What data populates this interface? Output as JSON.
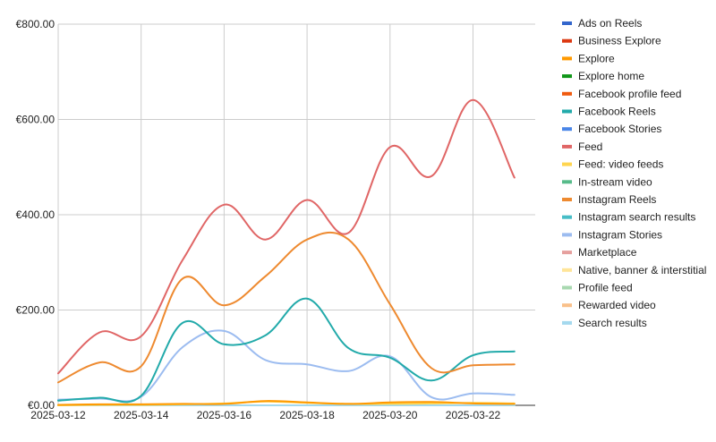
{
  "chart_data": {
    "type": "line",
    "title": "",
    "xlabel": "",
    "ylabel": "",
    "x": [
      "2025-03-12",
      "2025-03-13",
      "2025-03-14",
      "2025-03-15",
      "2025-03-16",
      "2025-03-17",
      "2025-03-18",
      "2025-03-19",
      "2025-03-20",
      "2025-03-21",
      "2025-03-22",
      "2025-03-23"
    ],
    "x_tick_labels": [
      "2025-03-12",
      "2025-03-14",
      "2025-03-16",
      "2025-03-18",
      "2025-03-20",
      "2025-03-22"
    ],
    "ylim": [
      0,
      800
    ],
    "y_ticks": [
      0,
      200,
      400,
      600,
      800
    ],
    "y_tick_labels": [
      "€0.00",
      "€200.00",
      "€400.00",
      "€600.00",
      "€800.00"
    ],
    "grid": true,
    "legend_position": "right",
    "series": [
      {
        "name": "Ads on Reels",
        "color": "#3366cc",
        "values": [
          0,
          0,
          0,
          0,
          0,
          0,
          0,
          0,
          0,
          0,
          0,
          0
        ]
      },
      {
        "name": "Business Explore",
        "color": "#dc3912",
        "values": [
          0,
          0,
          0,
          0,
          0,
          0,
          0,
          0,
          0,
          0,
          0,
          0
        ]
      },
      {
        "name": "Explore",
        "color": "#ff9900",
        "values": [
          1,
          2,
          2,
          3,
          3,
          9,
          6,
          3,
          6,
          7,
          4,
          3
        ]
      },
      {
        "name": "Explore home",
        "color": "#109618",
        "values": [
          0,
          0,
          0,
          0,
          0,
          0,
          0,
          0,
          0,
          0,
          0,
          0
        ]
      },
      {
        "name": "Facebook profile feed",
        "color": "#f05a0e",
        "values": [
          0,
          0,
          0,
          0,
          0,
          0,
          0,
          0,
          0,
          0,
          0,
          0
        ]
      },
      {
        "name": "Facebook Reels",
        "color": "#22aaaa",
        "values": [
          10,
          16,
          20,
          173,
          128,
          147,
          224,
          120,
          100,
          52,
          105,
          113
        ]
      },
      {
        "name": "Facebook Stories",
        "color": "#4a86e8",
        "values": [
          0,
          0,
          0,
          0,
          0,
          0,
          0,
          0,
          0,
          0,
          0,
          0
        ]
      },
      {
        "name": "Feed",
        "color": "#e06666",
        "values": [
          67,
          153,
          145,
          305,
          421,
          348,
          431,
          362,
          542,
          481,
          641,
          478
        ]
      },
      {
        "name": "Feed: video feeds",
        "color": "#ffd54f",
        "values": [
          0,
          1,
          1,
          2,
          4,
          8,
          5,
          3,
          3,
          4,
          5,
          4
        ]
      },
      {
        "name": "In-stream video",
        "color": "#57bb8a",
        "values": [
          0,
          0,
          0,
          0,
          0,
          0,
          0,
          0,
          0,
          0,
          0,
          0
        ]
      },
      {
        "name": "Instagram Reels",
        "color": "#ee8a30",
        "values": [
          48,
          90,
          82,
          266,
          210,
          271,
          348,
          348,
          212,
          78,
          84,
          86
        ]
      },
      {
        "name": "Instagram search results",
        "color": "#46bdc6",
        "values": [
          0,
          0,
          0,
          0,
          0,
          0,
          0,
          0,
          0,
          0,
          0,
          0
        ]
      },
      {
        "name": "Instagram Stories",
        "color": "#9cbcf0",
        "values": [
          12,
          14,
          18,
          122,
          156,
          95,
          86,
          72,
          103,
          17,
          25,
          22
        ]
      },
      {
        "name": "Marketplace",
        "color": "#e6a09e",
        "values": [
          0,
          0,
          0,
          0,
          0,
          0,
          0,
          0,
          0,
          0,
          0,
          0
        ]
      },
      {
        "name": "Native, banner & interstitial",
        "color": "#ffe599",
        "values": [
          0,
          0,
          0,
          0,
          0,
          0,
          0,
          0,
          0,
          0,
          0,
          0
        ]
      },
      {
        "name": "Profile feed",
        "color": "#a8d8b0",
        "values": [
          0,
          0,
          0,
          0,
          0,
          0,
          0,
          0,
          0,
          0,
          0,
          0
        ]
      },
      {
        "name": "Rewarded video",
        "color": "#f9c08a",
        "values": [
          0,
          0,
          0,
          0,
          0,
          0,
          0,
          0,
          0,
          0,
          0,
          0
        ]
      },
      {
        "name": "Search results",
        "color": "#a4d9ee",
        "values": [
          0,
          0,
          0,
          0,
          0,
          0,
          0,
          0,
          0,
          0,
          0,
          0
        ]
      }
    ]
  }
}
